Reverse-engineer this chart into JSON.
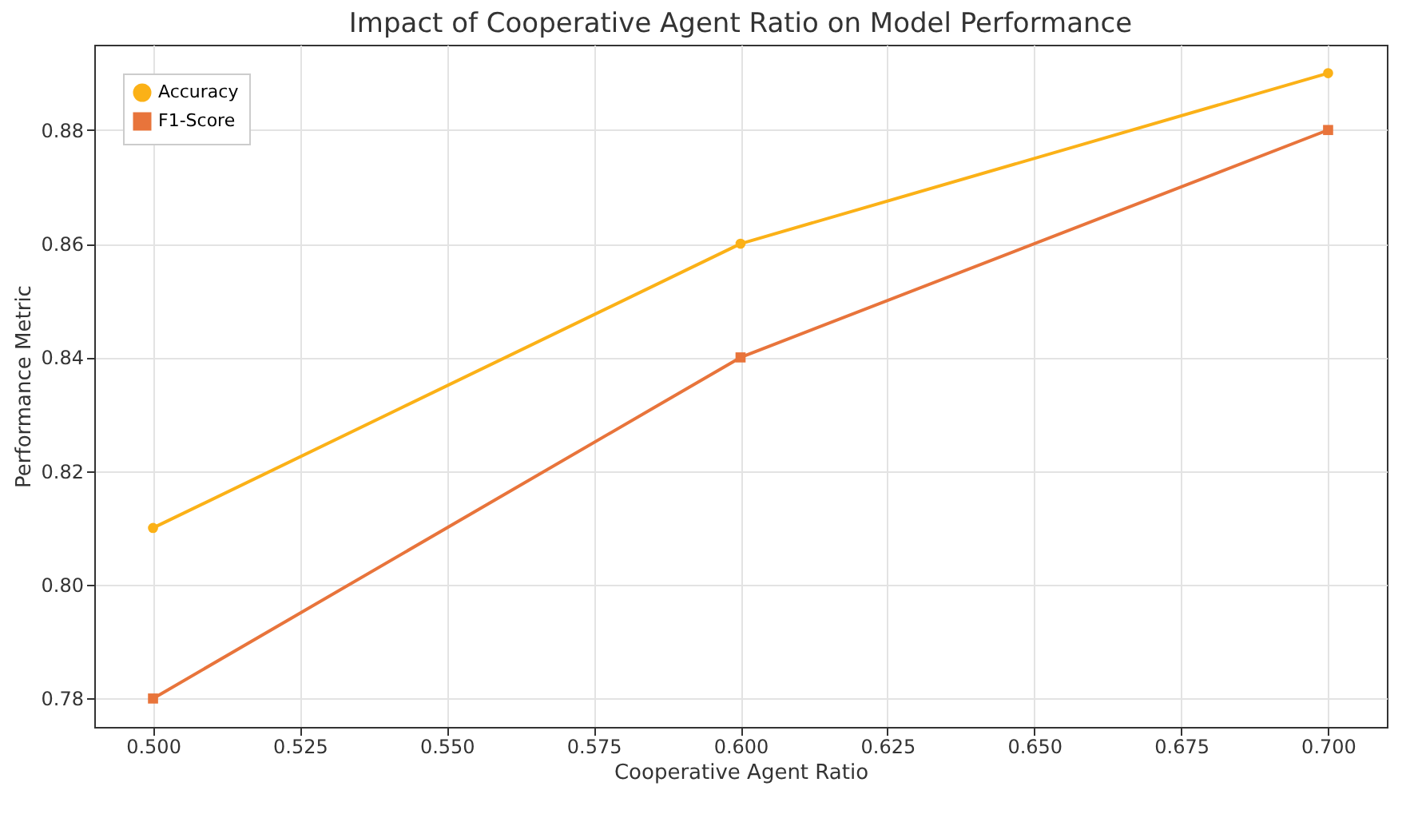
{
  "chart_data": {
    "type": "line",
    "title": "Impact of Cooperative Agent Ratio on Model Performance",
    "xlabel": "Cooperative Agent Ratio",
    "ylabel": "Performance Metric",
    "x": [
      0.5,
      0.6,
      0.7
    ],
    "series": [
      {
        "name": "Accuracy",
        "color": "#fbb117",
        "values": [
          0.81,
          0.86,
          0.89
        ],
        "marker": "circle"
      },
      {
        "name": "F1-Score",
        "color": "#e8743b",
        "values": [
          0.78,
          0.84,
          0.88
        ],
        "marker": "square"
      }
    ],
    "xlim": [
      0.49,
      0.71
    ],
    "xticks": [
      {
        "value": 0.5,
        "label": "0.500"
      },
      {
        "value": 0.525,
        "label": "0.525"
      },
      {
        "value": 0.55,
        "label": "0.550"
      },
      {
        "value": 0.575,
        "label": "0.575"
      },
      {
        "value": 0.6,
        "label": "0.600"
      },
      {
        "value": 0.625,
        "label": "0.625"
      },
      {
        "value": 0.65,
        "label": "0.650"
      },
      {
        "value": 0.675,
        "label": "0.675"
      },
      {
        "value": 0.7,
        "label": "0.700"
      }
    ],
    "ylim": [
      0.775,
      0.895
    ],
    "yticks": [
      {
        "value": 0.78,
        "label": "0.78"
      },
      {
        "value": 0.8,
        "label": "0.80"
      },
      {
        "value": 0.82,
        "label": "0.82"
      },
      {
        "value": 0.84,
        "label": "0.84"
      },
      {
        "value": 0.86,
        "label": "0.86"
      },
      {
        "value": 0.88,
        "label": "0.88"
      }
    ],
    "grid": true,
    "legend": "top left",
    "line_style": "solid"
  }
}
